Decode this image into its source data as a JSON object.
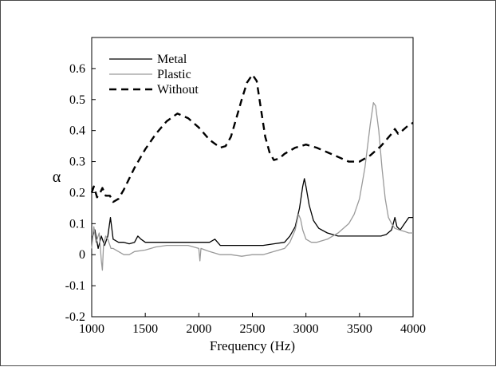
{
  "chart_data": {
    "type": "line",
    "title": "",
    "xlabel": "Frequency (Hz)",
    "ylabel": "α",
    "xlim": [
      1000,
      4000
    ],
    "ylim": [
      -0.2,
      0.7
    ],
    "xticks": [
      1000,
      1500,
      2000,
      2500,
      3000,
      3500,
      4000
    ],
    "xtick_labels": [
      "1000",
      "1500",
      "2000",
      "2500",
      "3000",
      "3500",
      "4000"
    ],
    "yticks": [
      -0.2,
      -0.1,
      0,
      0.1,
      0.2,
      0.3,
      0.4,
      0.5,
      0.6
    ],
    "ytick_labels": [
      "-0.2",
      "-0.1",
      "0",
      "0.1",
      "0.2",
      "0.3",
      "0.4",
      "0.5",
      "0.6"
    ],
    "grid": false,
    "legend_position": "top-left",
    "series": [
      {
        "name": "Metal",
        "color": "#000000",
        "style": "solid",
        "points": [
          [
            1000,
            0.05
          ],
          [
            1030,
            0.08
          ],
          [
            1060,
            0.02
          ],
          [
            1090,
            0.06
          ],
          [
            1120,
            0.03
          ],
          [
            1150,
            0.06
          ],
          [
            1175,
            0.12
          ],
          [
            1200,
            0.05
          ],
          [
            1250,
            0.04
          ],
          [
            1300,
            0.04
          ],
          [
            1350,
            0.035
          ],
          [
            1400,
            0.04
          ],
          [
            1430,
            0.06
          ],
          [
            1460,
            0.05
          ],
          [
            1500,
            0.04
          ],
          [
            1600,
            0.04
          ],
          [
            1700,
            0.04
          ],
          [
            1800,
            0.04
          ],
          [
            1900,
            0.04
          ],
          [
            2000,
            0.04
          ],
          [
            2100,
            0.04
          ],
          [
            2150,
            0.05
          ],
          [
            2200,
            0.03
          ],
          [
            2300,
            0.03
          ],
          [
            2400,
            0.03
          ],
          [
            2500,
            0.03
          ],
          [
            2600,
            0.03
          ],
          [
            2700,
            0.035
          ],
          [
            2800,
            0.04
          ],
          [
            2850,
            0.06
          ],
          [
            2900,
            0.09
          ],
          [
            2940,
            0.15
          ],
          [
            2970,
            0.22
          ],
          [
            2985,
            0.245
          ],
          [
            3000,
            0.22
          ],
          [
            3030,
            0.16
          ],
          [
            3070,
            0.11
          ],
          [
            3120,
            0.085
          ],
          [
            3200,
            0.07
          ],
          [
            3300,
            0.06
          ],
          [
            3400,
            0.06
          ],
          [
            3500,
            0.06
          ],
          [
            3600,
            0.06
          ],
          [
            3700,
            0.06
          ],
          [
            3750,
            0.065
          ],
          [
            3800,
            0.08
          ],
          [
            3830,
            0.12
          ],
          [
            3850,
            0.09
          ],
          [
            3880,
            0.08
          ],
          [
            3920,
            0.1
          ],
          [
            3960,
            0.12
          ],
          [
            4000,
            0.12
          ]
        ]
      },
      {
        "name": "Plastic",
        "color": "#9a9a9a",
        "style": "solid",
        "points": [
          [
            1000,
            0.02
          ],
          [
            1020,
            0.09
          ],
          [
            1040,
            0.04
          ],
          [
            1070,
            0.07
          ],
          [
            1090,
            -0.02
          ],
          [
            1100,
            -0.05
          ],
          [
            1110,
            0.03
          ],
          [
            1130,
            0.06
          ],
          [
            1150,
            0.05
          ],
          [
            1180,
            0.02
          ],
          [
            1200,
            0.02
          ],
          [
            1250,
            0.01
          ],
          [
            1300,
            0.0
          ],
          [
            1350,
            0.0
          ],
          [
            1400,
            0.01
          ],
          [
            1500,
            0.015
          ],
          [
            1600,
            0.025
          ],
          [
            1700,
            0.03
          ],
          [
            1800,
            0.03
          ],
          [
            1900,
            0.03
          ],
          [
            2000,
            0.02
          ],
          [
            2010,
            -0.02
          ],
          [
            2020,
            0.02
          ],
          [
            2100,
            0.01
          ],
          [
            2200,
            0.0
          ],
          [
            2300,
            0.0
          ],
          [
            2400,
            -0.005
          ],
          [
            2500,
            0.0
          ],
          [
            2600,
            0.0
          ],
          [
            2700,
            0.01
          ],
          [
            2800,
            0.02
          ],
          [
            2850,
            0.04
          ],
          [
            2900,
            0.08
          ],
          [
            2930,
            0.13
          ],
          [
            2950,
            0.115
          ],
          [
            2970,
            0.08
          ],
          [
            3000,
            0.05
          ],
          [
            3050,
            0.04
          ],
          [
            3100,
            0.04
          ],
          [
            3200,
            0.05
          ],
          [
            3300,
            0.07
          ],
          [
            3400,
            0.1
          ],
          [
            3450,
            0.13
          ],
          [
            3500,
            0.18
          ],
          [
            3550,
            0.28
          ],
          [
            3600,
            0.42
          ],
          [
            3630,
            0.49
          ],
          [
            3650,
            0.48
          ],
          [
            3680,
            0.4
          ],
          [
            3710,
            0.28
          ],
          [
            3740,
            0.18
          ],
          [
            3770,
            0.12
          ],
          [
            3800,
            0.1
          ],
          [
            3830,
            0.085
          ],
          [
            3870,
            0.08
          ],
          [
            3920,
            0.075
          ],
          [
            3960,
            0.07
          ],
          [
            4000,
            0.07
          ]
        ]
      },
      {
        "name": "Without",
        "color": "#000000",
        "style": "dashed",
        "points": [
          [
            1000,
            0.2
          ],
          [
            1020,
            0.22
          ],
          [
            1050,
            0.185
          ],
          [
            1080,
            0.2
          ],
          [
            1100,
            0.215
          ],
          [
            1130,
            0.19
          ],
          [
            1170,
            0.19
          ],
          [
            1200,
            0.17
          ],
          [
            1250,
            0.18
          ],
          [
            1300,
            0.21
          ],
          [
            1400,
            0.28
          ],
          [
            1500,
            0.34
          ],
          [
            1600,
            0.39
          ],
          [
            1700,
            0.43
          ],
          [
            1800,
            0.455
          ],
          [
            1900,
            0.44
          ],
          [
            2000,
            0.41
          ],
          [
            2100,
            0.37
          ],
          [
            2200,
            0.345
          ],
          [
            2250,
            0.35
          ],
          [
            2300,
            0.38
          ],
          [
            2350,
            0.44
          ],
          [
            2400,
            0.5
          ],
          [
            2450,
            0.555
          ],
          [
            2500,
            0.58
          ],
          [
            2540,
            0.56
          ],
          [
            2580,
            0.47
          ],
          [
            2620,
            0.38
          ],
          [
            2660,
            0.33
          ],
          [
            2700,
            0.305
          ],
          [
            2750,
            0.31
          ],
          [
            2800,
            0.325
          ],
          [
            2900,
            0.345
          ],
          [
            3000,
            0.355
          ],
          [
            3100,
            0.345
          ],
          [
            3200,
            0.33
          ],
          [
            3300,
            0.315
          ],
          [
            3400,
            0.3
          ],
          [
            3500,
            0.3
          ],
          [
            3600,
            0.32
          ],
          [
            3700,
            0.35
          ],
          [
            3800,
            0.39
          ],
          [
            3830,
            0.405
          ],
          [
            3860,
            0.39
          ],
          [
            3900,
            0.4
          ],
          [
            3950,
            0.415
          ],
          [
            4000,
            0.425
          ]
        ]
      }
    ]
  }
}
